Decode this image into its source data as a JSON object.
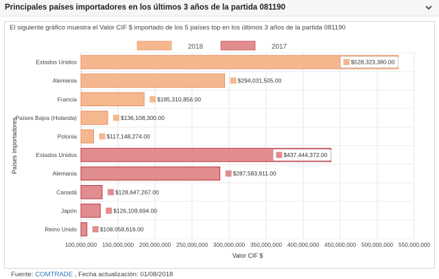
{
  "header": {
    "title": "Principales países importadores en los últimos 3 años de la partida 081190",
    "collapse_icon": "chevron-down-icon"
  },
  "description": "El siguiente gráfico muestra el Valor CIF $ importado de los 5 países top en los últimos 3 años de la partida 081190",
  "footer": {
    "source_label": "Fuente: ",
    "source_link": "COMTRADE",
    "update_text": " , Fecha actualización: 01/08/2018"
  },
  "colors": {
    "2018_fill": "#f5b78e",
    "2018_stroke": "#e8926a",
    "2017_fill": "#e18c8e",
    "2017_stroke": "#b73a45"
  },
  "chart_data": {
    "type": "bar",
    "orientation": "horizontal",
    "xlabel": "Valor CIF $",
    "ylabel": "Países importadores",
    "xlim": [
      100000000,
      550000000
    ],
    "xticks": [
      100000000,
      150000000,
      200000000,
      250000000,
      300000000,
      350000000,
      400000000,
      450000000,
      500000000,
      550000000
    ],
    "xtick_labels": [
      "100,000,000",
      "150,000,000",
      "200,000,000",
      "250,000,000",
      "300,000,000",
      "350,000,000",
      "400,000,000",
      "450,000,000",
      "500,000,000",
      "550,000,000"
    ],
    "grid": true,
    "legend": {
      "position": "top",
      "entries": [
        "2018",
        "2017"
      ]
    },
    "series": [
      {
        "name": "2018",
        "categories": [
          "Estados Unidos",
          "Alemania",
          "Francia",
          "Países Bajos (Holanda)",
          "Polonia"
        ],
        "values": [
          528323380.0,
          294031505.0,
          185310856.0,
          136108300.0,
          117148274.0
        ],
        "labels": [
          "$528,323,380.00",
          "$294,031,505.00",
          "$185,310,856.00",
          "$136,108,300.00",
          "$117,148,274.00"
        ]
      },
      {
        "name": "2017",
        "categories": [
          "Estados Unidos",
          "Alemania",
          "Canadá",
          "Japón",
          "Reino Unido"
        ],
        "values": [
          437444372.0,
          287583911.0,
          128647267.0,
          126109694.0,
          108058616.0
        ],
        "labels": [
          "$437,444,372.00",
          "$287,583,911.00",
          "$128,647,267.00",
          "$126,109,694.00",
          "$108,058,616.00"
        ]
      }
    ]
  }
}
